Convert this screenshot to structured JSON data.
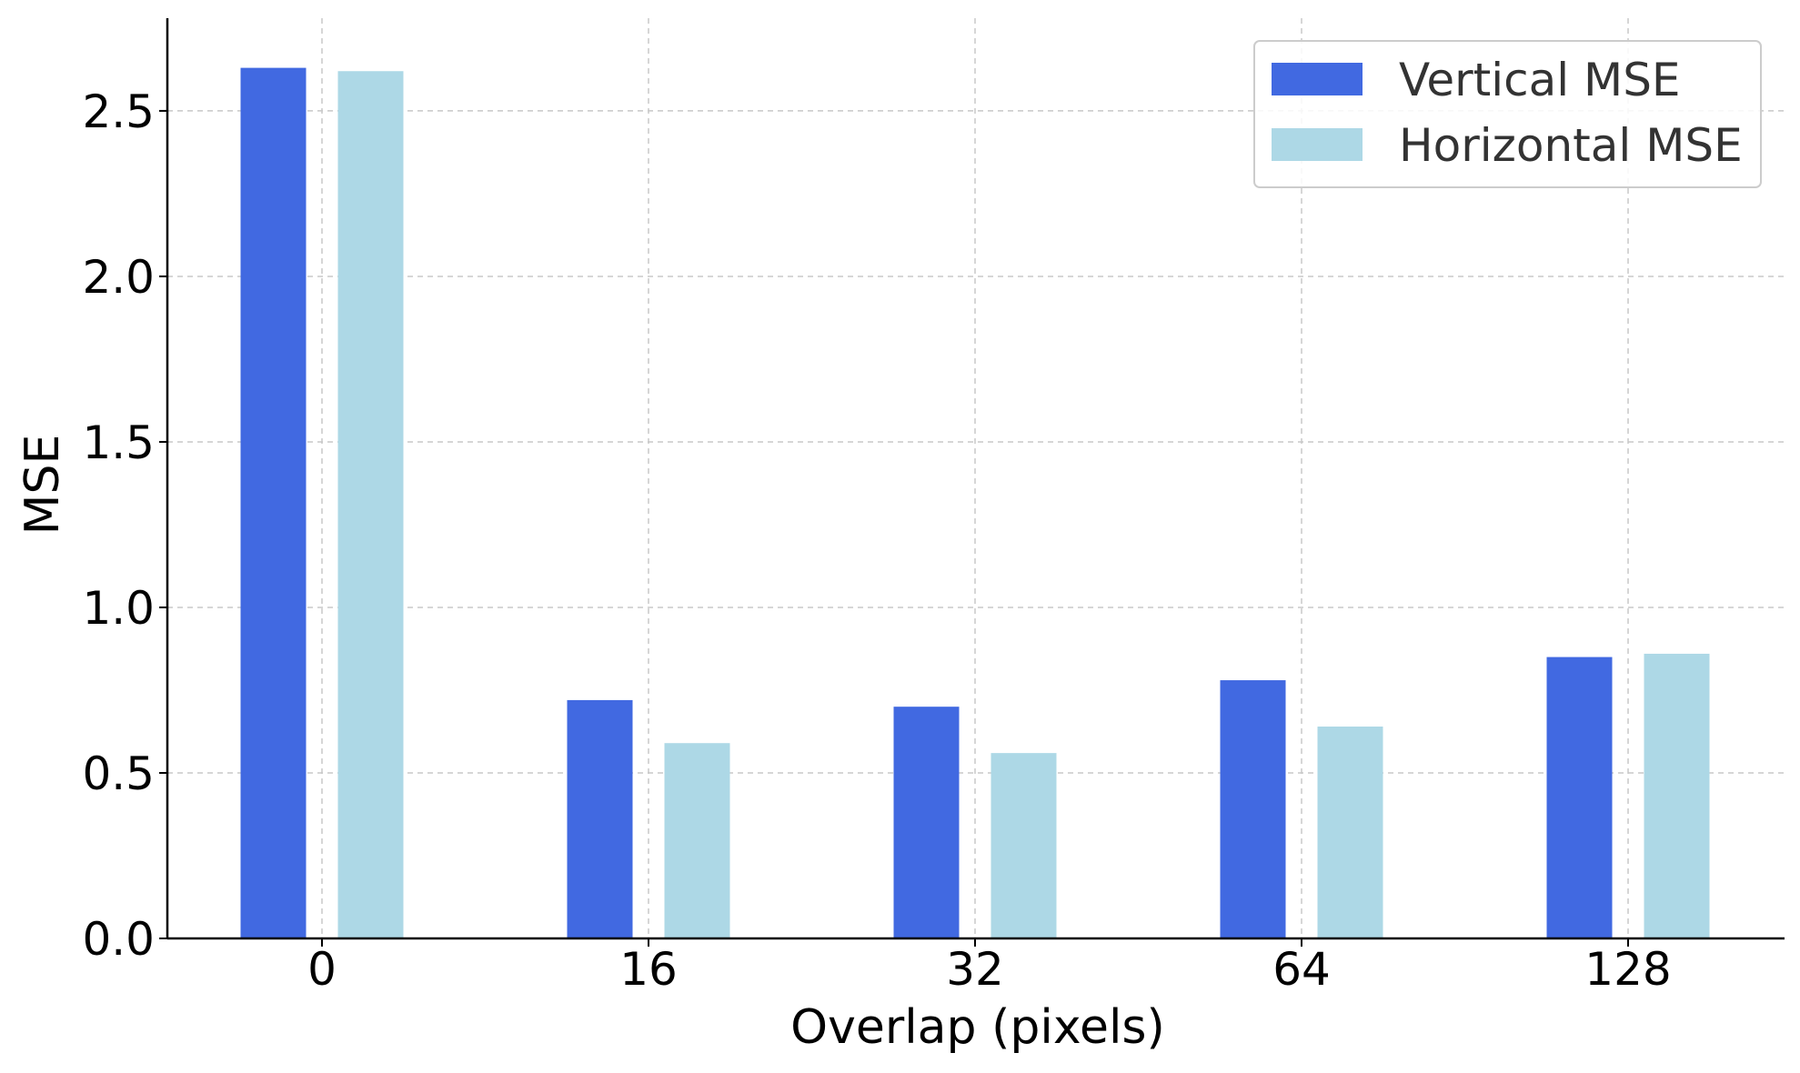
{
  "chart_data": {
    "type": "bar",
    "categories": [
      "0",
      "16",
      "32",
      "64",
      "128"
    ],
    "series": [
      {
        "name": "Vertical MSE",
        "values": [
          2.63,
          0.72,
          0.7,
          0.78,
          0.85
        ]
      },
      {
        "name": "Horizontal MSE",
        "values": [
          2.62,
          0.59,
          0.56,
          0.64,
          0.86
        ]
      }
    ],
    "colors": [
      "#4169e1",
      "#add8e6"
    ],
    "title": "",
    "xlabel": "Overlap (pixels)",
    "ylabel": "MSE",
    "ylim": [
      0,
      2.78
    ],
    "yticks": [
      "0.0",
      "0.5",
      "1.0",
      "1.5",
      "2.0",
      "2.5"
    ],
    "grid": true,
    "legend_position": "top-right"
  }
}
